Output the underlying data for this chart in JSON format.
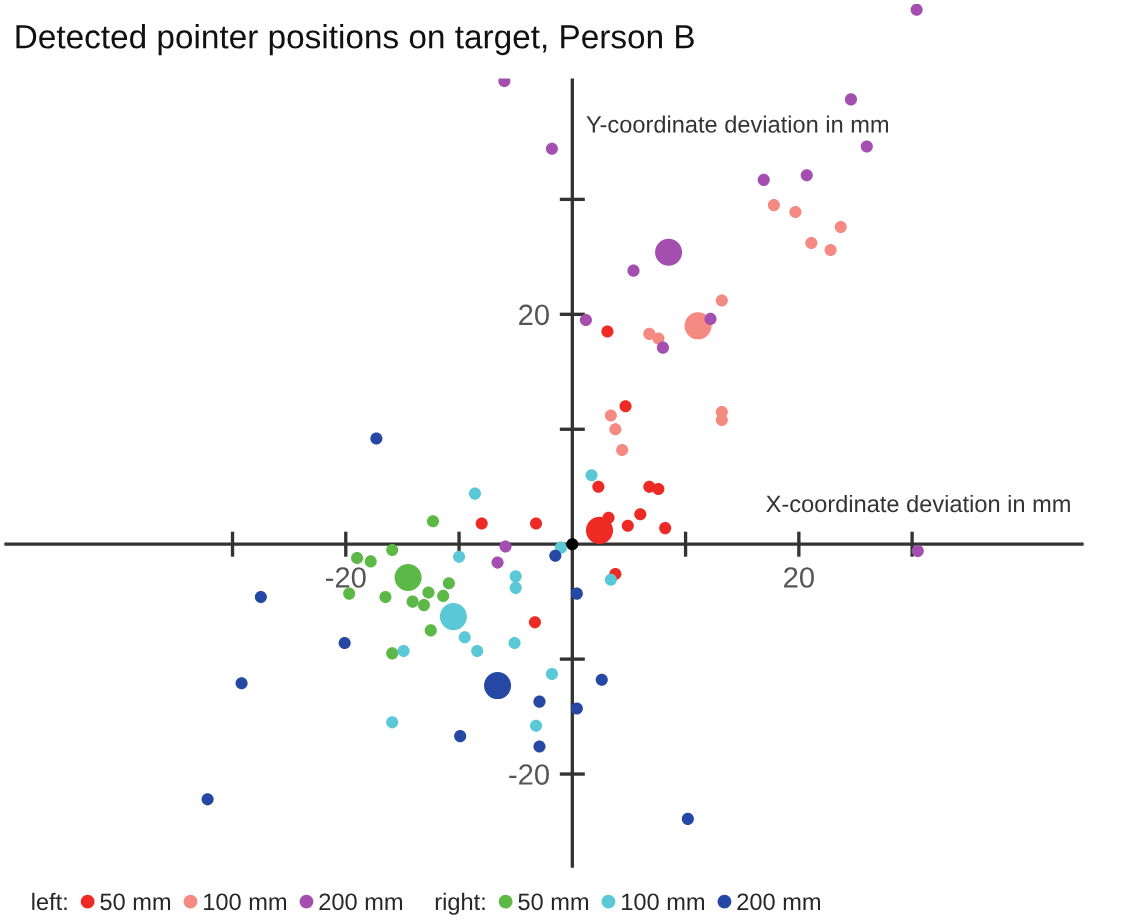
{
  "chart_data": {
    "type": "bubble",
    "title": "Detected pointer positions on target, Person B",
    "xlabel": "X-coordinate deviation in mm",
    "ylabel": "Y-coordinate deviation in mm",
    "annotations": [
      "left:",
      "right:"
    ],
    "xlim": [
      -50,
      45
    ],
    "ylim": [
      -28,
      47
    ],
    "xticks": [
      {
        "value": -30,
        "label": null
      },
      -20,
      {
        "value": -10,
        "label": null
      },
      {
        "value": 10,
        "label": null
      },
      20,
      {
        "value": 30,
        "label": null
      }
    ],
    "yticks": [
      -20,
      {
        "value": -10,
        "label": null
      },
      {
        "value": 10,
        "label": null
      },
      20,
      {
        "value": 30,
        "label": null
      }
    ],
    "grid": false,
    "legend": "bottom",
    "marker": "circle",
    "series": [
      {
        "name": "50 mm",
        "color": "#ee2a24",
        "x": [
          3.1,
          4.7,
          2.3,
          6.8,
          7.6,
          6.0,
          4.9,
          3.2,
          2.4,
          8.2,
          -3.2,
          -8.0,
          -3.3,
          3.8
        ],
        "values": [
          18.5,
          12.0,
          5.0,
          5.0,
          4.8,
          2.6,
          1.6,
          2.3,
          1.2,
          1.4,
          1.8,
          1.8,
          -6.8,
          -2.6
        ],
        "sizes": [
          0.2,
          0.2,
          0.2,
          0.2,
          0.2,
          0.2,
          0.2,
          0.2,
          1,
          0.2,
          0.2,
          0.2,
          0.2,
          0.2
        ]
      },
      {
        "name": "100 mm",
        "color": "#f58a82",
        "x": [
          17.8,
          19.7,
          23.7,
          21.1,
          22.8,
          13.2,
          11.1,
          6.8,
          7.6,
          13.2,
          13.2,
          3.4,
          3.8,
          4.4
        ],
        "values": [
          29.5,
          28.9,
          27.6,
          26.2,
          25.6,
          21.2,
          19.0,
          18.3,
          17.9,
          11.5,
          10.8,
          11.2,
          10.0,
          8.2
        ],
        "sizes": [
          0.2,
          0.2,
          0.2,
          0.2,
          0.2,
          0.2,
          1,
          0.2,
          0.2,
          0.2,
          0.2,
          0.2,
          0.2,
          0.2
        ]
      },
      {
        "name": "200 mm",
        "color": "#a44fb0",
        "x": [
          -6.0,
          -1.8,
          30.4,
          24.6,
          26.0,
          16.9,
          20.7,
          8.5,
          5.4,
          1.2,
          12.2,
          8.0,
          -5.9,
          -6.6,
          30.5
        ],
        "values": [
          40.3,
          34.4,
          46.5,
          38.7,
          34.6,
          31.7,
          32.1,
          25.4,
          23.8,
          19.5,
          19.6,
          17.1,
          -0.2,
          -1.6,
          -0.6
        ],
        "sizes": [
          0.2,
          0.2,
          0.2,
          0.2,
          0.2,
          0.2,
          0.2,
          1,
          0.2,
          0.2,
          0.2,
          0.2,
          0.2,
          0.2,
          0.2
        ]
      },
      {
        "name": "50 mm",
        "color": "#5cb947",
        "x": [
          -12.3,
          -15.9,
          -19.0,
          -17.8,
          -14.5,
          -19.7,
          -16.5,
          -14.1,
          -13.1,
          -12.7,
          -11.4,
          -10.9,
          -12.5,
          -15.9
        ],
        "values": [
          2.0,
          -0.5,
          -1.2,
          -1.5,
          -2.9,
          -4.3,
          -4.6,
          -5.0,
          -5.3,
          -4.2,
          -4.5,
          -3.4,
          -7.5,
          -9.5
        ],
        "sizes": [
          0.2,
          0.2,
          0.2,
          0.2,
          1,
          0.2,
          0.2,
          0.2,
          0.2,
          0.2,
          0.2,
          0.2,
          0.2,
          0.2
        ]
      },
      {
        "name": "100 mm",
        "color": "#5bc8d8",
        "x": [
          -8.6,
          -10.0,
          -5.0,
          -5.0,
          -10.5,
          -9.5,
          -8.4,
          -5.1,
          -14.9,
          -1.8,
          -15.9,
          -3.2,
          1.7,
          3.4,
          -1.0
        ],
        "values": [
          4.4,
          -1.1,
          -2.8,
          -3.8,
          -6.3,
          -8.1,
          -9.3,
          -8.6,
          -9.3,
          -11.3,
          -15.5,
          -15.8,
          6.0,
          -3.1,
          -0.3
        ],
        "sizes": [
          0.2,
          0.2,
          0.2,
          0.2,
          1,
          0.2,
          0.2,
          0.2,
          0.2,
          0.2,
          0.2,
          0.2,
          0.2,
          0.2,
          0.2
        ]
      },
      {
        "name": "200 mm",
        "color": "#2448a4",
        "x": [
          -17.3,
          -1.5,
          0.4,
          -27.5,
          -20.1,
          -29.2,
          -6.6,
          -2.9,
          0.4,
          -9.9,
          -2.9,
          -32.2,
          2.6,
          10.2
        ],
        "values": [
          9.2,
          -1.0,
          -4.3,
          -4.6,
          -8.6,
          -12.1,
          -12.3,
          -13.7,
          -14.3,
          -16.7,
          -17.6,
          -22.2,
          -11.8,
          -23.9
        ],
        "sizes": [
          0.2,
          0.2,
          0.2,
          0.2,
          0.2,
          0.2,
          1,
          0.2,
          0.2,
          0.2,
          0.2,
          0.2,
          0.2,
          0.2
        ]
      },
      {
        "color": "#000000",
        "x": [
          0
        ],
        "values": [
          0
        ],
        "sizes": [
          0.2
        ]
      }
    ]
  }
}
